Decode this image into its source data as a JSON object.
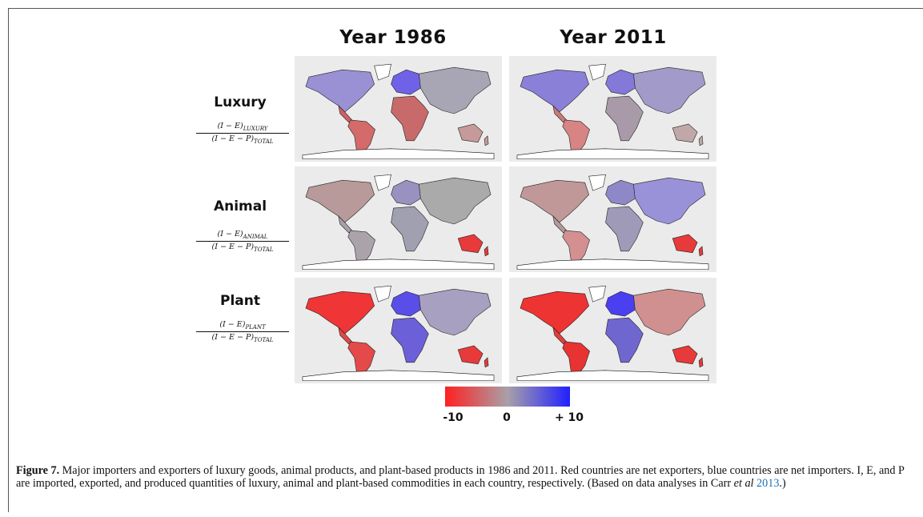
{
  "columns": [
    "Year 1986",
    "Year 2011"
  ],
  "rows": [
    {
      "label": "Luxury",
      "numerator": "(I − E)",
      "numerator_sub": "LUXURY",
      "denominator": "(I − E − P)",
      "denominator_sub": "TOTAL"
    },
    {
      "label": "Animal",
      "numerator": "(I − E)",
      "numerator_sub": "ANIMAL",
      "denominator": "(I − E − P)",
      "denominator_sub": "TOTAL"
    },
    {
      "label": "Plant",
      "numerator": "(I − E)",
      "numerator_sub": "PLANT",
      "denominator": "(I − E − P)",
      "denominator_sub": "TOTAL"
    }
  ],
  "colorbar": {
    "labels": [
      "-10",
      "0",
      "+ 10"
    ]
  },
  "caption": {
    "label": "Figure 7.",
    "text": "Major importers and exporters of luxury goods, animal products, and plant-based products in 1986 and 2011. Red countries are net exporters, blue countries are net importers. I, E, and P are imported, exported, and produced quantities of luxury, animal and plant-based commodities in each country, respectively. (Based on data analyses in Carr",
    "emphasis": "et al",
    "link": "2013",
    "end": ".)"
  }
}
